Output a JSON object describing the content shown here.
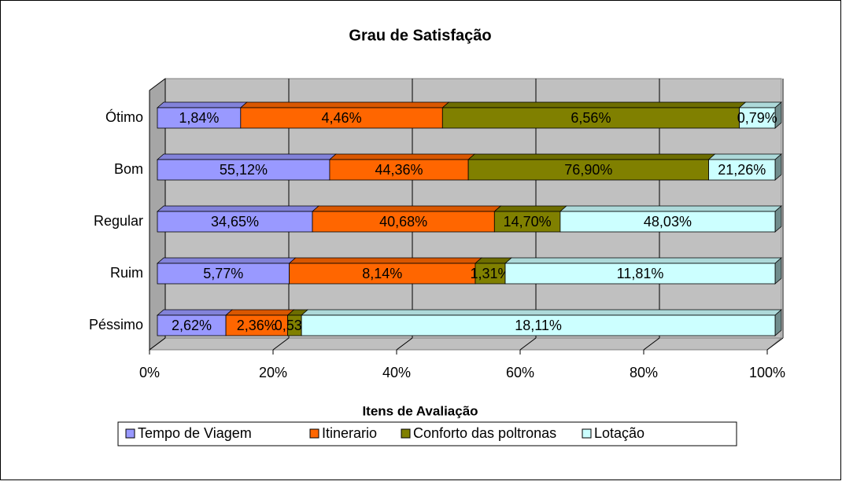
{
  "chart_data": {
    "type": "bar",
    "orientation": "horizontal",
    "stacking": "percent",
    "title": "Grau de Satisfação",
    "xlabel": "Itens de Avaliação",
    "categories": [
      "Ótimo",
      "Bom",
      "Regular",
      "Ruim",
      "Péssimo"
    ],
    "series": [
      {
        "name": "Tempo de Viagem",
        "color": "#9999ff",
        "values": [
          1.84,
          55.12,
          34.65,
          5.77,
          2.62
        ],
        "value_labels": [
          "1,84%",
          "55,12%",
          "34,65%",
          "5,77%",
          "2,62%"
        ]
      },
      {
        "name": "Itinerario",
        "color": "#ff6600",
        "values": [
          4.46,
          44.36,
          40.68,
          8.14,
          2.36
        ],
        "value_labels": [
          "4,46%",
          "44,36%",
          "40,68%",
          "8,14%",
          "2,36%"
        ]
      },
      {
        "name": "Conforto das poltronas",
        "color": "#808000",
        "values": [
          6.56,
          76.9,
          14.7,
          1.31,
          0.53
        ],
        "value_labels": [
          "6,56%",
          "76,90%",
          "14,70%",
          "1,31%",
          "0,53%"
        ]
      },
      {
        "name": "Lotação",
        "color": "#ccffff",
        "values": [
          0.79,
          21.26,
          48.03,
          11.81,
          18.11
        ],
        "value_labels": [
          "0,79%",
          "21,26%",
          "48,03%",
          "11,81%",
          "18,11%"
        ]
      }
    ],
    "xlim": [
      0,
      100
    ],
    "xticks": [
      {
        "value": 0,
        "label": "0%"
      },
      {
        "value": 20,
        "label": "20%"
      },
      {
        "value": 40,
        "label": "40%"
      },
      {
        "value": 60,
        "label": "60%"
      },
      {
        "value": 80,
        "label": "80%"
      },
      {
        "value": 100,
        "label": "100%"
      }
    ],
    "grid": true,
    "legend": "bottom"
  }
}
